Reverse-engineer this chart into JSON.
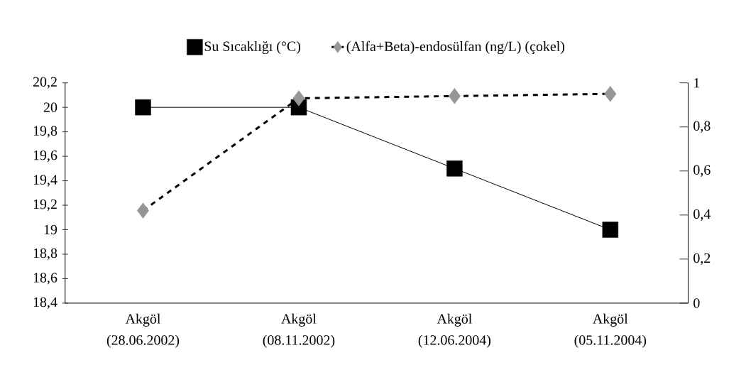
{
  "chart_data": {
    "type": "line",
    "categories": [
      "Akgöl (28.06.2002)",
      "Akgöl (08.11.2002)",
      "Akgöl (12.06.2004)",
      "Akgöl (05.11.2004)"
    ],
    "series": [
      {
        "name": "Su Sıcaklığı (°C)",
        "color": "#000000",
        "values": [
          20,
          20,
          19.5,
          19
        ],
        "marker": "square",
        "line_style": "solid"
      },
      {
        "name": "(Alfa+Beta)-endosülfan (ng/L) (çokel)",
        "color": "#969696",
        "values": [
          0.42,
          0.93,
          0.94,
          0.95
        ],
        "marker": "diamond",
        "line_style": "dashed",
        "axis": "y2"
      }
    ],
    "ylim": [
      18.4,
      20.2
    ],
    "yticks": [
      {
        "value": 18.4,
        "label": "18,4"
      },
      {
        "value": 18.6,
        "label": "18,6"
      },
      {
        "value": 18.8,
        "label": "18,8"
      },
      19,
      {
        "value": 19.2,
        "label": "19,2"
      },
      {
        "value": 19.4,
        "label": "19,4"
      },
      {
        "value": 19.6,
        "label": "19,6"
      },
      {
        "value": 19.8,
        "label": "19,8"
      },
      20,
      {
        "value": 20.2,
        "label": "20,2"
      }
    ],
    "y2lim": [
      0,
      1
    ],
    "y2ticks": [
      0,
      {
        "value": 0.2,
        "label": "0,2"
      },
      {
        "value": 0.4,
        "label": "0,4"
      },
      {
        "value": 0.6,
        "label": "0,6"
      },
      {
        "value": 0.8,
        "label": "0,8"
      },
      1
    ],
    "grid": false,
    "legend": "top"
  }
}
